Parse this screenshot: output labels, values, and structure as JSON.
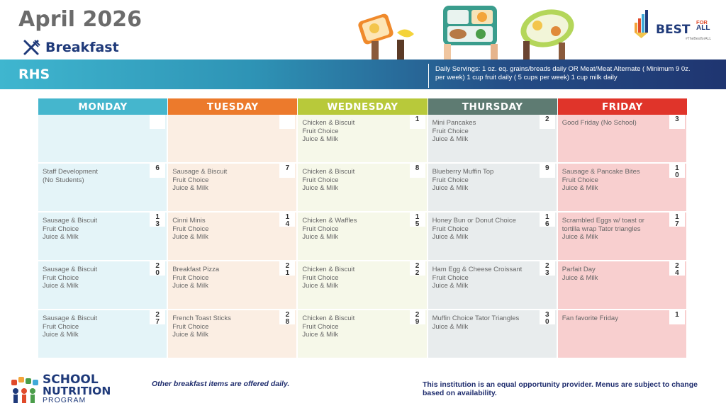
{
  "header": {
    "title": "April 2026",
    "meal": "Breakfast",
    "school": "RHS",
    "servings": "Daily Servings: 1 oz. eq. grains/breads daily OR Meat/Meat Alternate ( Minimum 9 0z.\n     per  week)  1 cup fruit daily ( 5 cups per week)     1 cup milk daily",
    "logo_text": "BEST",
    "logo_for": "FOR",
    "logo_all": "ALL",
    "logo_hashtag": "#TheBestforALL"
  },
  "colors": {
    "monday": "#45b6cd",
    "tuesday": "#ec7a2c",
    "wednesday": "#b8c93a",
    "thursday": "#5e7b72",
    "friday": "#e0342a",
    "monday_bg": "#e4f4f8",
    "tuesday_bg": "#fbeee3",
    "wednesday_bg": "#f6f8e9",
    "thursday_bg": "#e8eced",
    "friday_bg": "#f8cfcf"
  },
  "days": [
    "MONDAY",
    "TUESDAY",
    "WEDNESDAY",
    "THURSDAY",
    "FRIDAY"
  ],
  "weeks": [
    [
      {
        "date": "",
        "menu": ""
      },
      {
        "date": "",
        "menu": ""
      },
      {
        "date": "1",
        "menu": "Chicken & Biscuit\n Fruit Choice\nJuice & Milk"
      },
      {
        "date": "2",
        "menu": "Mini Pancakes\nFruit Choice\nJuice & Milk"
      },
      {
        "date": "3",
        "menu": "Good Friday (No School)"
      }
    ],
    [
      {
        "date": "6",
        "menu": "Staff Development\n(No Students)"
      },
      {
        "date": "7",
        "menu": "Sausage & Biscuit\nFruit Choice\n Juice & Milk"
      },
      {
        "date": "8",
        "menu": "Chicken & Biscuit\n Fruit Choice\nJuice & Milk"
      },
      {
        "date": "9",
        "menu": "Blueberry Muffin Top\nFruit Choice\nJuice & Milk"
      },
      {
        "date": "1\n0",
        "menu": "Sausage & Pancake Bites\nFruit Choice\nJuice & Milk"
      }
    ],
    [
      {
        "date": "1\n3",
        "menu": "Sausage & Biscuit\nFruit Choice\n Juice & Milk"
      },
      {
        "date": "1\n4",
        "menu": "Cinni Minis\nFruit Choice\nJuice & Milk"
      },
      {
        "date": "1\n5",
        "menu": "Chicken & Waffles\nFruit Choice\nJuice & Milk"
      },
      {
        "date": "1\n6",
        "menu": "Honey Bun or Donut Choice\nFruit Choice\nJuice & Milk"
      },
      {
        "date": "1\n7",
        "menu": "Scrambled Eggs w/ toast or\ntortilla wrap Tator triangles\nJuice & Milk"
      }
    ],
    [
      {
        "date": "2\n0",
        "menu": "Sausage & Biscuit\nFruit Choice\n Juice & Milk"
      },
      {
        "date": "2\n1",
        "menu": "Breakfast Pizza\nFruit Choice\n Juice & Milk"
      },
      {
        "date": "2\n2",
        "menu": "Chicken & Biscuit\n Fruit Choice\nJuice & Milk"
      },
      {
        "date": "2\n3",
        "menu": "Ham Egg & Cheese Croissant\nFruit Choice\nJuice & Milk"
      },
      {
        "date": "2\n4",
        "menu": "Parfait Day\nJuice & Milk"
      }
    ],
    [
      {
        "date": "2\n7",
        "menu": "Sausage & Biscuit\nFruit Choice\n Juice & Milk"
      },
      {
        "date": "2\n8",
        "menu": "French Toast Sticks\nFruit Choice\n Juice & Milk"
      },
      {
        "date": "2\n9",
        "menu": "Chicken & Biscuit\n Fruit Choice\nJuice & Milk"
      },
      {
        "date": "3\n0",
        "menu": "Muffin Choice Tator Triangles\nJuice & Milk"
      },
      {
        "date": "1",
        "menu": "Fan favorite Friday"
      }
    ]
  ],
  "footer": {
    "logo_school": "SCHOOL",
    "logo_nutrition": "NUTRITION",
    "logo_program": "PROGRAM",
    "left": "Other breakfast items are offered daily.",
    "right": "This institution is an equal opportunity provider. Menus are subject to change\n     based on availability."
  }
}
